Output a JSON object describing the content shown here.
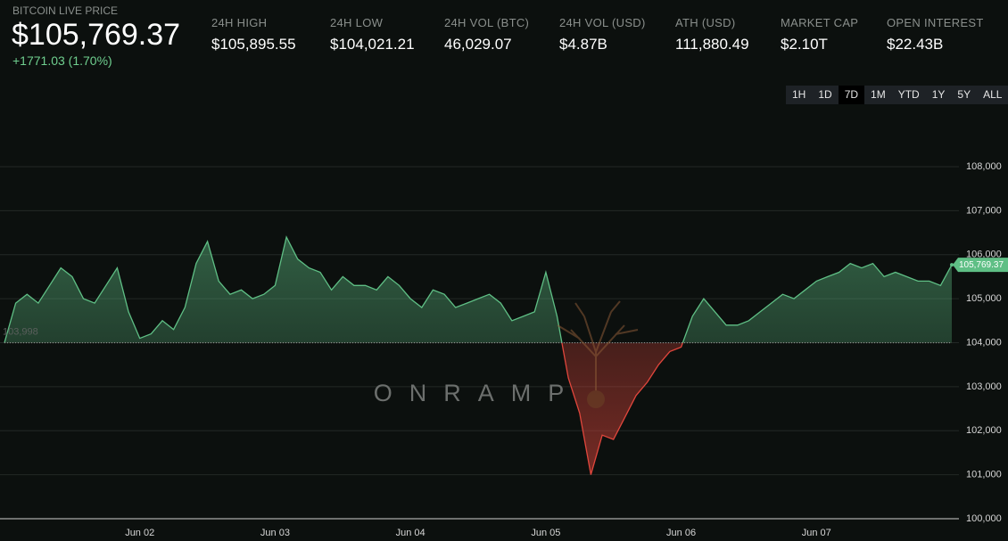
{
  "header": {
    "label": "BITCOIN LIVE PRICE",
    "price": "$105,769.37",
    "change": "+1771.03 (1.70%)",
    "stats": [
      {
        "label": "24H HIGH",
        "value": "$105,895.55"
      },
      {
        "label": "24H LOW",
        "value": "$104,021.21"
      },
      {
        "label": "24H VOL (BTC)",
        "value": "46,029.07"
      },
      {
        "label": "24H VOL (USD)",
        "value": "$4.87B"
      },
      {
        "label": "ATH (USD)",
        "value": "111,880.49"
      },
      {
        "label": "MARKET CAP",
        "value": "$2.10T"
      },
      {
        "label": "OPEN INTEREST",
        "value": "$22.43B"
      }
    ],
    "ranges": [
      "1H",
      "1D",
      "7D",
      "1M",
      "YTD",
      "1Y",
      "5Y",
      "ALL"
    ],
    "active_range": 2
  },
  "chart_data": {
    "type": "area",
    "watermark": "ONRAMP",
    "categories": [
      null,
      null,
      null,
      null,
      null,
      null,
      null,
      null,
      null,
      null,
      null,
      null,
      "Jun 02",
      null,
      null,
      null,
      null,
      null,
      null,
      null,
      null,
      null,
      null,
      null,
      "Jun 03",
      null,
      null,
      null,
      null,
      null,
      null,
      null,
      null,
      null,
      null,
      null,
      "Jun 04",
      null,
      null,
      null,
      null,
      null,
      null,
      null,
      null,
      null,
      null,
      null,
      "Jun 05",
      null,
      null,
      null,
      null,
      null,
      null,
      null,
      null,
      null,
      null,
      null,
      "Jun 06",
      null,
      null,
      null,
      null,
      null,
      null,
      null,
      null,
      null,
      null,
      null,
      "Jun 07",
      null,
      null,
      null,
      null,
      null,
      null,
      null,
      null,
      null,
      null,
      null,
      null
    ],
    "values": [
      104000,
      104900,
      105100,
      104900,
      105300,
      105700,
      105500,
      105000,
      104900,
      105300,
      105700,
      104700,
      104100,
      104200,
      104500,
      104300,
      104800,
      105800,
      106300,
      105400,
      105100,
      105200,
      105000,
      105100,
      105300,
      106400,
      105900,
      105700,
      105600,
      105200,
      105500,
      105300,
      105300,
      105200,
      105500,
      105300,
      105000,
      104800,
      105200,
      105100,
      104800,
      104900,
      105000,
      105100,
      104900,
      104500,
      104600,
      104700,
      105600,
      104600,
      103200,
      102400,
      101000,
      101900,
      101800,
      102300,
      102800,
      103100,
      103500,
      103800,
      103900,
      104600,
      105000,
      104700,
      104400,
      104400,
      104500,
      104700,
      104900,
      105100,
      105000,
      105200,
      105400,
      105500,
      105600,
      105800,
      105700,
      105800,
      105500,
      105600,
      105500,
      105400,
      105400,
      105300,
      105769.37
    ],
    "price_label": "105,769.37",
    "baseline": {
      "value": 103998,
      "label": "103,998"
    },
    "up_color": "#5fbf85",
    "down_color": "#e0463c",
    "ylim": [
      100000,
      108000
    ],
    "yticks": [
      {
        "value": 100000,
        "label": "100,000"
      },
      {
        "value": 101000,
        "label": "101,000"
      },
      {
        "value": 102000,
        "label": "102,000"
      },
      {
        "value": 103000,
        "label": "103,000"
      },
      {
        "value": 104000,
        "label": "104,000"
      },
      {
        "value": 105000,
        "label": "105,000"
      },
      {
        "value": 106000,
        "label": "106,000"
      },
      {
        "value": 107000,
        "label": "107,000"
      },
      {
        "value": 108000,
        "label": "108,000"
      }
    ],
    "grid": true
  }
}
